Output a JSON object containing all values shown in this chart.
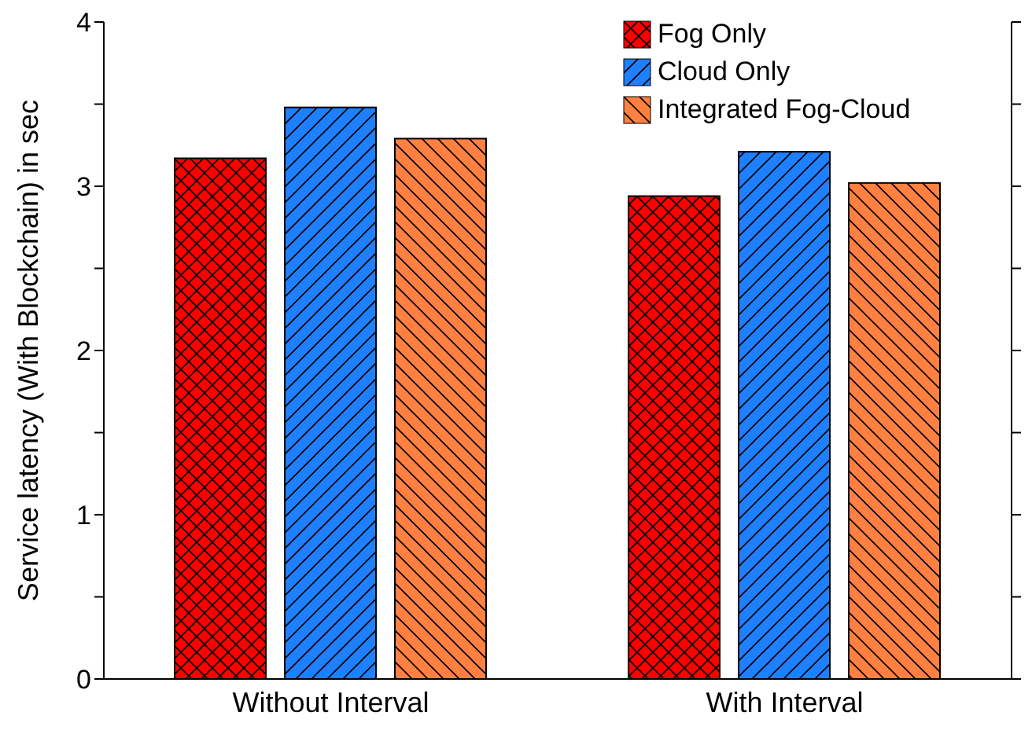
{
  "chart_data": {
    "type": "bar",
    "ylabel": "Service latency (With Blockchain) in sec",
    "categories": [
      "Without Interval",
      "With Interval"
    ],
    "series": [
      {
        "name": "Fog Only",
        "color": "#ff0000",
        "values": [
          3.17,
          2.94
        ]
      },
      {
        "name": "Cloud Only",
        "color": "#1e7fff",
        "values": [
          3.48,
          3.21
        ]
      },
      {
        "name": "Integrated Fog-Cloud",
        "color": "#ff8040",
        "values": [
          3.29,
          3.02
        ]
      }
    ],
    "ylim": [
      0,
      4
    ],
    "yticks": [
      0,
      {
        "value": 0.5,
        "label": null
      },
      1,
      {
        "value": 1.5,
        "label": null
      },
      2,
      {
        "value": 2.5,
        "label": null
      },
      3,
      {
        "value": 3.5,
        "label": null
      },
      4
    ],
    "legend": "top right"
  }
}
